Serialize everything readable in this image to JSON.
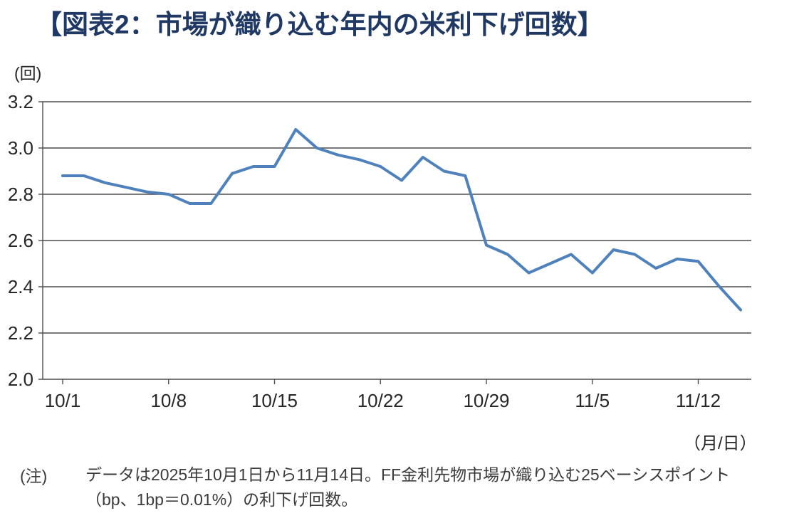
{
  "title": "【図表2：市場が織り込む年内の米利下げ回数】",
  "y_axis_unit": "(回)",
  "x_axis_unit": "（月/日）",
  "note": {
    "prefix": "(注)",
    "line1": "データは2025年10月1日から11月14日。FF金利先物市場が織り込む25ベーシスポイント",
    "line2": "（bp、1bp＝0.01%）の利下げ回数。"
  },
  "colors": {
    "title": "#1F3864",
    "line": "#4F81BD",
    "grid": "#4d4d4d",
    "axis": "#4d4d4d",
    "axis_text": "#262626"
  },
  "chart_data": {
    "type": "line",
    "title": "【図表2：市場が織り込む年内の米利下げ回数】",
    "xlabel": "（月/日）",
    "ylabel": "(回)",
    "ylim": [
      2.0,
      3.2
    ],
    "y_ticks": [
      3.2,
      3.0,
      2.8,
      2.6,
      2.4,
      2.2,
      2.0
    ],
    "grid": true,
    "legend": false,
    "x": [
      "10/1",
      "10/2",
      "10/3",
      "10/6",
      "10/7",
      "10/8",
      "10/9",
      "10/10",
      "10/13",
      "10/14",
      "10/15",
      "10/16",
      "10/17",
      "10/20",
      "10/21",
      "10/22",
      "10/23",
      "10/24",
      "10/27",
      "10/28",
      "10/29",
      "10/30",
      "10/31",
      "11/3",
      "11/4",
      "11/5",
      "11/6",
      "11/7",
      "11/10",
      "11/11",
      "11/12",
      "11/13",
      "11/14"
    ],
    "values": [
      2.88,
      2.88,
      2.85,
      2.83,
      2.81,
      2.8,
      2.76,
      2.76,
      2.89,
      2.92,
      2.92,
      3.08,
      3.0,
      2.97,
      2.95,
      2.92,
      2.86,
      2.96,
      2.9,
      2.88,
      2.58,
      2.54,
      2.46,
      2.5,
      2.54,
      2.46,
      2.56,
      2.54,
      2.48,
      2.52,
      2.51,
      2.4,
      2.3
    ],
    "x_tick_labels": [
      "10/1",
      "10/8",
      "10/15",
      "10/22",
      "10/29",
      "11/5",
      "11/12"
    ],
    "x_tick_indices": [
      0,
      5,
      10,
      15,
      20,
      25,
      30
    ]
  }
}
